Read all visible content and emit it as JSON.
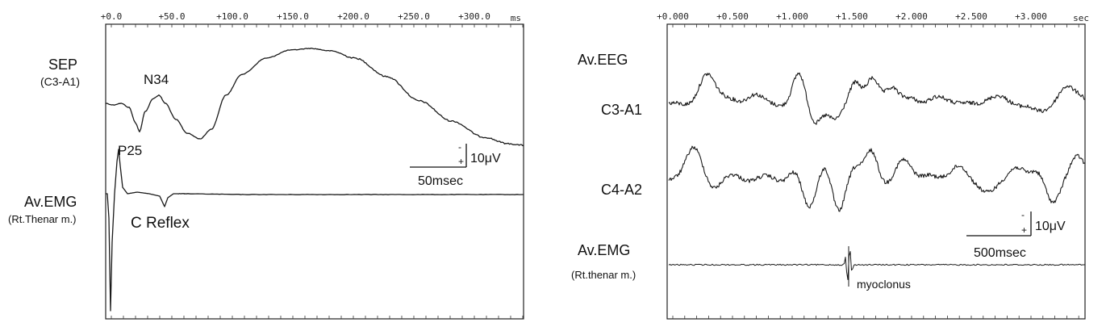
{
  "left_panel": {
    "time_ticks": [
      "+0.0",
      "+50.0",
      "+100.0",
      "+150.0",
      "+200.0",
      "+250.0",
      "+300.0"
    ],
    "time_unit": "ms",
    "sep_label": "SEP",
    "sep_sublabel": "(C3-A1)",
    "n34_label": "N34",
    "p25_label": "P25",
    "emg_label": "Av.EMG",
    "emg_sublabel": "(Rt.Thenar m.)",
    "c_reflex_label": "C Reflex",
    "scale_amp": "10μV",
    "scale_time": "50msec",
    "scale_minus": "-",
    "scale_plus": "+"
  },
  "right_panel": {
    "time_ticks": [
      "+0.000",
      "+0.500",
      "+1.000",
      "+1.500",
      "+2.000",
      "+2.500",
      "+3.000"
    ],
    "time_unit": "sec",
    "eeg_label": "Av.EEG",
    "c3_label": "C3-A1",
    "c4_label": "C4-A2",
    "emg_label": "Av.EMG",
    "emg_sublabel": "(Rt.thenar m.)",
    "myoclonus_label": "myoclonus",
    "scale_amp": "10μV",
    "scale_time": "500msec",
    "scale_minus": "-",
    "scale_plus": "+"
  }
}
